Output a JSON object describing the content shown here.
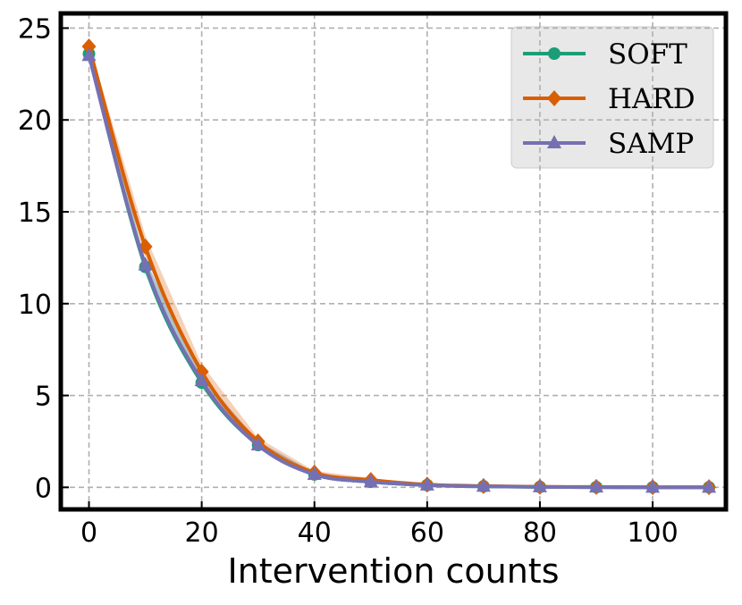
{
  "chart_data": {
    "type": "line",
    "title": "",
    "xlabel": "Intervention counts",
    "ylabel": "",
    "xlim": [
      -5,
      113
    ],
    "ylim": [
      -1.2,
      25.8
    ],
    "xticks": [
      0,
      20,
      40,
      60,
      80,
      100
    ],
    "yticks": [
      0,
      5,
      10,
      15,
      20,
      25
    ],
    "grid": true,
    "legend_position": "top-right",
    "x": [
      0,
      10,
      20,
      30,
      40,
      50,
      60,
      70,
      80,
      90,
      100,
      110
    ],
    "series": [
      {
        "name": "SOFT",
        "marker": "circle",
        "color": "#1b9e77",
        "values": [
          23.6,
          12.0,
          5.7,
          2.3,
          0.7,
          0.3,
          0.12,
          0.05,
          0.02,
          0.01,
          0.0,
          0.0
        ],
        "band": [
          [
            23.4,
            23.8
          ],
          [
            11.6,
            12.4
          ],
          [
            5.4,
            6.0
          ],
          [
            2.1,
            2.5
          ],
          [
            0.6,
            0.8
          ],
          [
            0.25,
            0.35
          ],
          [
            0.1,
            0.14
          ],
          [
            0.04,
            0.06
          ],
          [
            0.01,
            0.03
          ],
          [
            0.0,
            0.02
          ],
          [
            0.0,
            0.01
          ],
          [
            0.0,
            0.01
          ]
        ]
      },
      {
        "name": "HARD",
        "marker": "diamond",
        "color": "#d95f02",
        "values": [
          24.0,
          13.1,
          6.3,
          2.5,
          0.8,
          0.4,
          0.15,
          0.07,
          0.03,
          0.02,
          0.01,
          0.01
        ],
        "band": [
          [
            23.8,
            24.2
          ],
          [
            12.5,
            13.7
          ],
          [
            5.9,
            6.7
          ],
          [
            2.3,
            2.7
          ],
          [
            0.7,
            0.9
          ],
          [
            0.3,
            0.5
          ],
          [
            0.12,
            0.18
          ],
          [
            0.05,
            0.09
          ],
          [
            0.02,
            0.04
          ],
          [
            0.01,
            0.03
          ],
          [
            0.0,
            0.02
          ],
          [
            0.0,
            0.02
          ]
        ]
      },
      {
        "name": "SAMP",
        "marker": "triangle",
        "color": "#7570b3",
        "values": [
          23.5,
          12.1,
          5.8,
          2.3,
          0.7,
          0.3,
          0.12,
          0.05,
          0.02,
          0.01,
          0.0,
          0.0
        ],
        "band": [
          [
            23.3,
            23.7
          ],
          [
            11.8,
            12.4
          ],
          [
            5.5,
            6.1
          ],
          [
            2.1,
            2.5
          ],
          [
            0.6,
            0.8
          ],
          [
            0.25,
            0.35
          ],
          [
            0.1,
            0.14
          ],
          [
            0.04,
            0.06
          ],
          [
            0.01,
            0.03
          ],
          [
            0.0,
            0.02
          ],
          [
            0.0,
            0.01
          ],
          [
            0.0,
            0.01
          ]
        ]
      }
    ]
  }
}
